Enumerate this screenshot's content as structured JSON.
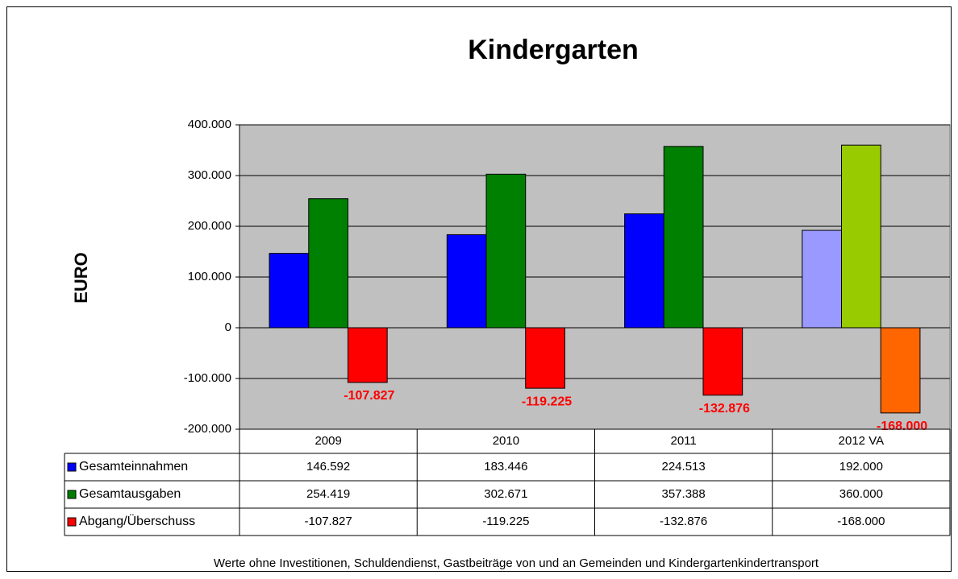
{
  "chart_data": {
    "type": "bar",
    "title": "Kindergarten",
    "ylabel": "EURO",
    "footnote": "Werte ohne Investitionen, Schuldendienst, Gastbeiträge von und an Gemeinden und Kindergartenkindertransport",
    "categories": [
      "2009",
      "2010",
      "2011",
      "2012 VA"
    ],
    "series": [
      {
        "name": "Gesamteinnahmen",
        "color": "#0000ff",
        "colors": [
          "#0000ff",
          "#0000ff",
          "#0000ff",
          "#9999ff"
        ],
        "values": [
          146592,
          183446,
          224513,
          192000
        ],
        "value_labels": [
          "146.592",
          "183.446",
          "224.513",
          "192.000"
        ]
      },
      {
        "name": "Gesamtausgaben",
        "color": "#008000",
        "colors": [
          "#008000",
          "#008000",
          "#008000",
          "#99cc00"
        ],
        "values": [
          254419,
          302671,
          357388,
          360000
        ],
        "value_labels": [
          "254.419",
          "302.671",
          "357.388",
          "360.000"
        ]
      },
      {
        "name": "Abgang/Überschuss",
        "color": "#ff0000",
        "colors": [
          "#ff0000",
          "#ff0000",
          "#ff0000",
          "#ff6600"
        ],
        "values": [
          -107827,
          -119225,
          -132876,
          -168000
        ],
        "value_labels": [
          "-107.827",
          "-119.225",
          "-132.876",
          "-168.000"
        ],
        "data_labels": true
      }
    ],
    "ylim": [
      -200000,
      400000
    ],
    "yticks": [
      {
        "value": -200000,
        "label": "-200.000"
      },
      {
        "value": -100000,
        "label": "-100.000"
      },
      0,
      {
        "value": 100000,
        "label": "100.000"
      },
      {
        "value": 200000,
        "label": "200.000"
      },
      {
        "value": 300000,
        "label": "300.000"
      },
      {
        "value": 400000,
        "label": "400.000"
      }
    ],
    "grid": true,
    "data_table": true
  }
}
